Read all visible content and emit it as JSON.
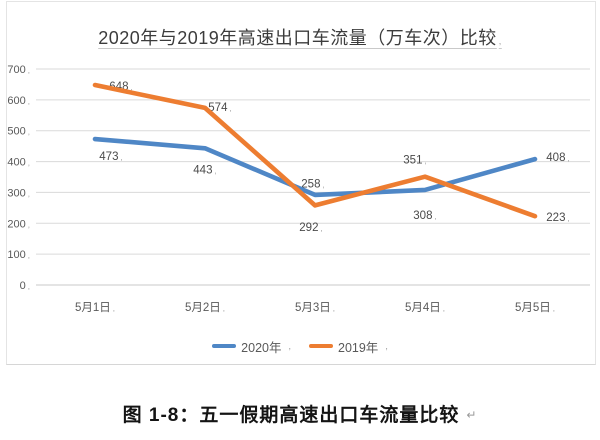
{
  "marks": {
    "label_suffix": ",",
    "caption_break_mark": "↵"
  },
  "chart_data": {
    "type": "line",
    "title": "2020年与2019年高速出口车流量（万车次）比较",
    "categories": [
      "5月1日",
      "5月2日",
      "5月3日",
      "5月4日",
      "5月5日"
    ],
    "series": [
      {
        "name": "2020年",
        "color": "#4F87C6",
        "values": [
          473,
          443,
          292,
          308,
          408
        ]
      },
      {
        "name": "2019年",
        "color": "#ED7D31",
        "values": [
          648,
          574,
          258,
          351,
          223
        ]
      }
    ],
    "xlabel": "",
    "ylabel": "",
    "ylim": [
      0,
      700
    ],
    "yticks": [
      0,
      100,
      200,
      300,
      400,
      500,
      600,
      700
    ],
    "grid": true,
    "legend_position": "bottom"
  },
  "caption": {
    "text": "图 1-8：五一假期高速出口车流量比较"
  }
}
